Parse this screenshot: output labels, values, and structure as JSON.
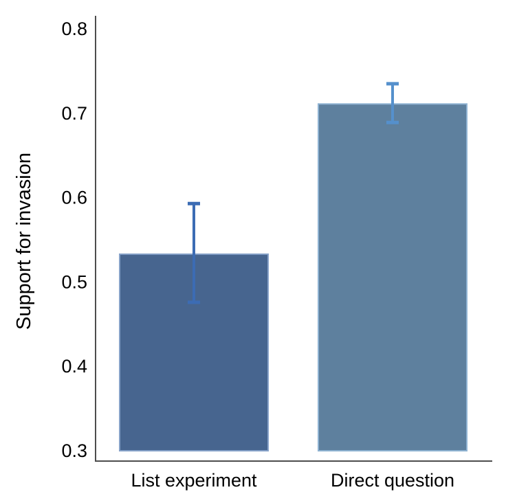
{
  "chart_data": {
    "type": "bar",
    "title": "",
    "xlabel": "",
    "ylabel": "Support for invasion",
    "categories": [
      "List experiment",
      "Direct question"
    ],
    "values": [
      0.533,
      0.711
    ],
    "error_low": [
      0.476,
      0.689
    ],
    "error_high": [
      0.593,
      0.735
    ],
    "yticks": [
      0.3,
      0.4,
      0.5,
      0.6,
      0.7,
      0.8
    ],
    "ylim": [
      0.3,
      0.8
    ],
    "grid": false,
    "legend": false,
    "bar_colors": [
      "#47658f",
      "#5e809e"
    ],
    "bar_border_colors": [
      "#87a2c9",
      "#8fb3d2"
    ],
    "error_colors": [
      "#3c6cb4",
      "#5590cc"
    ],
    "axis_color": "#4d4d4d",
    "text_color": "#000000",
    "background_color": "#ffffff"
  }
}
